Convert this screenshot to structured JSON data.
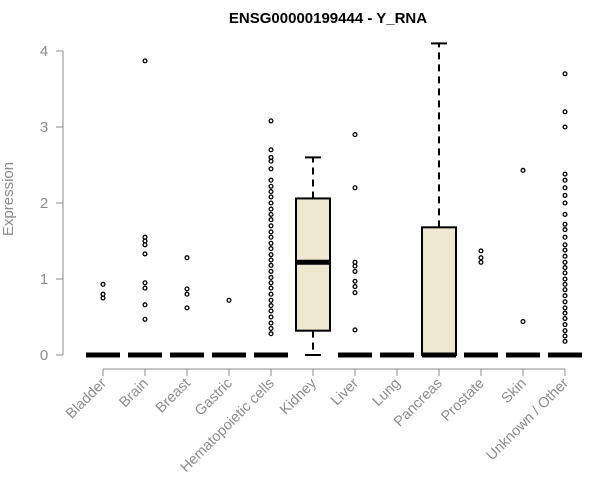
{
  "chart_data": {
    "type": "boxplot",
    "title": "ENSG00000199444 - Y_RNA",
    "xlabel": "",
    "ylabel": "Expression",
    "ylim": [
      0,
      4.1
    ],
    "yticks": [
      0,
      1,
      2,
      3,
      4
    ],
    "box_fill": "#efe8d0",
    "categories": [
      "Bladder",
      "Brain",
      "Breast",
      "Gastric",
      "Hematopoietic cells",
      "Kidney",
      "Liver",
      "Lung",
      "Pancreas",
      "Prostate",
      "Skin",
      "Unknown / Other"
    ],
    "boxes": [
      {
        "category": "Bladder",
        "q1": 0,
        "median": 0,
        "q3": 0,
        "whisker_low": 0,
        "whisker_high": 0,
        "outliers": [
          0.75,
          0.8,
          0.93
        ]
      },
      {
        "category": "Brain",
        "q1": 0,
        "median": 0,
        "q3": 0,
        "whisker_low": 0,
        "whisker_high": 0,
        "outliers": [
          0.47,
          0.66,
          0.88,
          0.95,
          1.33,
          1.45,
          1.5,
          1.55,
          3.87
        ]
      },
      {
        "category": "Breast",
        "q1": 0,
        "median": 0,
        "q3": 0,
        "whisker_low": 0,
        "whisker_high": 0,
        "outliers": [
          0.62,
          0.8,
          0.87,
          1.28
        ]
      },
      {
        "category": "Gastric",
        "q1": 0,
        "median": 0,
        "q3": 0,
        "whisker_low": 0,
        "whisker_high": 0,
        "outliers": [
          0.72
        ]
      },
      {
        "category": "Hematopoietic cells",
        "q1": 0,
        "median": 0,
        "q3": 0,
        "whisker_low": 0,
        "whisker_high": 0,
        "outliers": [
          0.28,
          0.35,
          0.42,
          0.5,
          0.58,
          0.65,
          0.72,
          0.8,
          0.88,
          0.95,
          1.02,
          1.1,
          1.18,
          1.25,
          1.32,
          1.4,
          1.47,
          1.55,
          1.62,
          1.7,
          1.78,
          1.85,
          1.92,
          2.0,
          2.08,
          2.15,
          2.22,
          2.3,
          2.45,
          2.55,
          2.6,
          2.7,
          3.08
        ]
      },
      {
        "category": "Kidney",
        "q1": 0.32,
        "median": 1.22,
        "q3": 2.06,
        "whisker_low": 0,
        "whisker_high": 2.6,
        "outliers": []
      },
      {
        "category": "Liver",
        "q1": 0,
        "median": 0,
        "q3": 0,
        "whisker_low": 0,
        "whisker_high": 0,
        "outliers": [
          0.33,
          0.82,
          0.9,
          0.97,
          1.1,
          1.17,
          1.22,
          2.2,
          2.9
        ]
      },
      {
        "category": "Lung",
        "q1": 0,
        "median": 0,
        "q3": 0,
        "whisker_low": 0,
        "whisker_high": 0,
        "outliers": []
      },
      {
        "category": "Pancreas",
        "q1": 0,
        "median": 0,
        "q3": 1.68,
        "whisker_low": 0,
        "whisker_high": 4.1,
        "outliers": []
      },
      {
        "category": "Prostate",
        "q1": 0,
        "median": 0,
        "q3": 0,
        "whisker_low": 0,
        "whisker_high": 0,
        "outliers": [
          1.22,
          1.28,
          1.37
        ]
      },
      {
        "category": "Skin",
        "q1": 0,
        "median": 0,
        "q3": 0,
        "whisker_low": 0,
        "whisker_high": 0,
        "outliers": [
          0.44,
          2.43
        ]
      },
      {
        "category": "Unknown / Other",
        "q1": 0,
        "median": 0,
        "q3": 0,
        "whisker_low": 0,
        "whisker_high": 0,
        "outliers": [
          0.18,
          0.25,
          0.32,
          0.4,
          0.48,
          0.55,
          0.62,
          0.7,
          0.78,
          0.86,
          0.93,
          1.0,
          1.08,
          1.15,
          1.22,
          1.3,
          1.38,
          1.45,
          1.55,
          1.65,
          1.72,
          1.85,
          2.0,
          2.1,
          2.2,
          2.3,
          2.38,
          3.0,
          3.2,
          3.7
        ]
      }
    ]
  }
}
